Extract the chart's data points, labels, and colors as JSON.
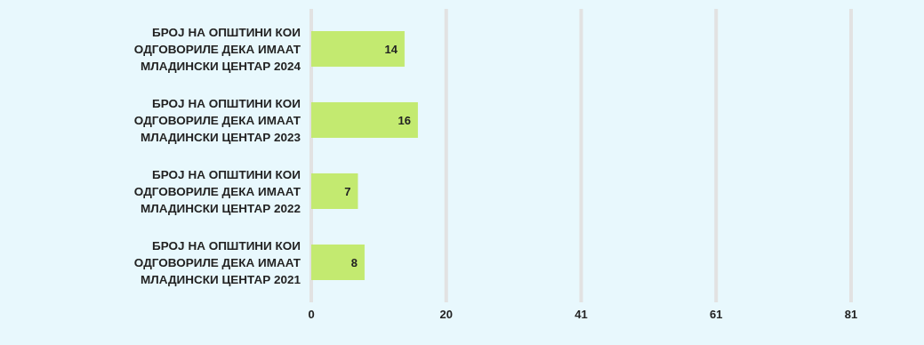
{
  "chart_data": {
    "type": "bar",
    "orientation": "horizontal",
    "categories": [
      "БРОЈ НА ОПШТИНИ КОИ ОДГОВОРИЛЕ ДЕКА ИМААТ МЛАДИНСКИ ЦЕНТАР 2024",
      "БРОЈ НА ОПШТИНИ КОИ ОДГОВОРИЛЕ ДЕКА ИМААТ МЛАДИНСКИ ЦЕНТАР 2023",
      "БРОЈ НА ОПШТИНИ КОИ ОДГОВОРИЛЕ ДЕКА ИМААТ МЛАДИНСКИ ЦЕНТАР 2022",
      "БРОЈ НА ОПШТИНИ КОИ ОДГОВОРИЛЕ ДЕКА ИМААТ МЛАДИНСКИ ЦЕНТАР 2021"
    ],
    "values": [
      14,
      16,
      7,
      8
    ],
    "color": "#c3ea70",
    "xlim": [
      0,
      81
    ],
    "xticks": [
      0,
      {
        "value": 20.25,
        "label": "20"
      },
      {
        "value": 40.5,
        "label": "41"
      },
      {
        "value": 60.75,
        "label": "61"
      },
      81
    ],
    "grid": "x",
    "data_labels": true
  }
}
